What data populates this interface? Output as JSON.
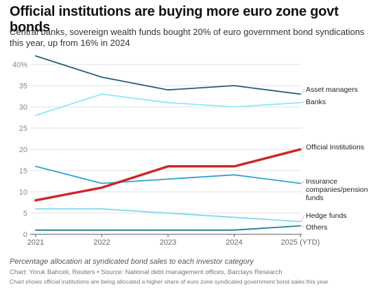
{
  "chart_data": {
    "type": "line",
    "title": "Official institutions are buying more euro zone govt bonds",
    "subtitle": "Central banks, sovereign wealth funds bought 20% of euro government bond syndications this year, up from 16% in 2024",
    "x": [
      "2021",
      "2022",
      "2023",
      "2024",
      "2025 (YTD)"
    ],
    "ylim": [
      0,
      42
    ],
    "yticks": [
      {
        "value": 0,
        "label": "0"
      },
      {
        "value": 5,
        "label": "5"
      },
      {
        "value": 10,
        "label": "10"
      },
      {
        "value": 15,
        "label": "15"
      },
      {
        "value": 20,
        "label": "20"
      },
      {
        "value": 25,
        "label": "25"
      },
      {
        "value": 30,
        "label": "30"
      },
      {
        "value": 35,
        "label": "35"
      },
      {
        "value": 40,
        "label": "40%"
      }
    ],
    "grid": true,
    "legend": "direct labels at right end of lines",
    "series": [
      {
        "name": "Asset managers",
        "values": [
          42,
          37,
          34,
          35,
          33
        ],
        "color": "#1f5f7a",
        "highlight": false
      },
      {
        "name": "Banks",
        "values": [
          28,
          33,
          31,
          30,
          31
        ],
        "color": "#8ee8f5",
        "highlight": false
      },
      {
        "name": "Official Institutions",
        "values": [
          8,
          11,
          16,
          16,
          20
        ],
        "color": "#cc2929",
        "highlight": true
      },
      {
        "name": "Insurance companies/pension funds",
        "values": [
          16,
          12,
          13,
          14,
          12
        ],
        "color": "#29a3cc",
        "highlight": false
      },
      {
        "name": "Hedge funds",
        "values": [
          6,
          6,
          5,
          4,
          3
        ],
        "color": "#7fd8f0",
        "highlight": false
      },
      {
        "name": "Others",
        "values": [
          1,
          1,
          1,
          1,
          2
        ],
        "color": "#1f7a99",
        "highlight": false
      }
    ],
    "series_labels": [
      {
        "lines": [
          "Asset managers"
        ]
      },
      {
        "lines": [
          "Banks"
        ]
      },
      {
        "lines": [
          "Official Institutions"
        ]
      },
      {
        "lines": [
          "Insurance",
          "companies/pension",
          "funds"
        ]
      },
      {
        "lines": [
          "Hedge funds"
        ]
      },
      {
        "lines": [
          "Others"
        ]
      }
    ]
  },
  "footer": {
    "note": "Percentage allocation at syndicated bond sales to each investor category",
    "credit": "Chart: Yoruk Bahceli, Reuters • Source: National debt management offices, Barclays Research",
    "description": "Chart shows official institutions are being allocated a higher share of euro zone syndicated government bond sales this year"
  }
}
